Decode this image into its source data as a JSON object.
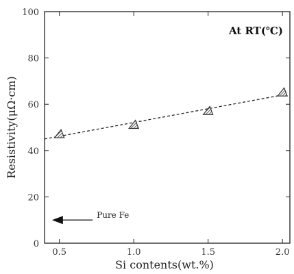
{
  "chart_data": {
    "type": "scatter",
    "title": "",
    "xlabel": "Si contents(wt.%)",
    "ylabel": "Resistivity(μΩ·cm)",
    "xlim": [
      0.4,
      2.05
    ],
    "ylim": [
      0,
      100
    ],
    "x_ticks": [
      0.5,
      1.0,
      1.5,
      2.0
    ],
    "x_tick_labels": [
      "0.5",
      "1.0",
      "1.5",
      "2.0"
    ],
    "y_ticks": [
      0,
      20,
      40,
      60,
      80,
      100
    ],
    "y_tick_labels": [
      "0",
      "20",
      "40",
      "60",
      "80",
      "100"
    ],
    "grid": false,
    "series": [
      {
        "marker": "hatched-triangle",
        "x": [
          0.5,
          1.0,
          1.5,
          2.0
        ],
        "y": [
          47,
          51,
          57,
          65
        ]
      }
    ],
    "trendline": {
      "style": "dashed",
      "x": [
        0.4,
        2.0
      ],
      "y": [
        45,
        64
      ]
    },
    "annotations": [
      {
        "text": "At RT(℃)",
        "placement": "top-right",
        "style": "bold"
      },
      {
        "text": "Pure Fe",
        "arrow": "left",
        "arrow_from": [
          0.88,
          10
        ],
        "arrow_to": [
          0.45,
          10
        ]
      }
    ],
    "colors": {
      "marker_fill": "#999999",
      "line": "#222222",
      "axis": "#222222"
    }
  }
}
